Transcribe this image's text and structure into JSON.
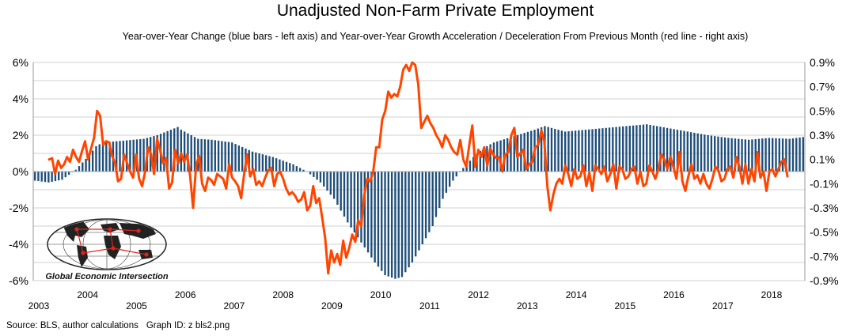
{
  "chart_data": {
    "type": "bar+line",
    "title": "Unadjusted Non-Farm Private Employment",
    "subtitle": "Year-over-Year Change (blue bars - left axis) and Year-over-Year Growth Acceleration / Deceleration From Previous Month (red line - right axis)",
    "left_axis": {
      "min": -6,
      "max": 6,
      "ticks": [
        "6%",
        "4%",
        "2%",
        "0%",
        "-2%",
        "-4%",
        "-6%"
      ]
    },
    "right_axis": {
      "min": -0.9,
      "max": 0.9,
      "ticks": [
        "0.9%",
        "0.7%",
        "0.5%",
        "0.3%",
        "0.1%",
        "-0.1%",
        "-0.3%",
        "-0.5%",
        "-0.7%",
        "-0.9%"
      ]
    },
    "x_labels_lower": [
      "2003",
      "2005",
      "2007",
      "2009",
      "2011",
      "2013",
      "2015",
      "2017"
    ],
    "x_labels_upper": [
      "2004",
      "2006",
      "2008",
      "2010",
      "2012",
      "2014",
      "2016",
      "2018"
    ],
    "bar_series": {
      "name": "Year-over-Year Change",
      "color": "#1f4e79",
      "unit": "%",
      "anchors": [
        [
          0,
          -0.5
        ],
        [
          4,
          -0.6
        ],
        [
          8,
          -0.45
        ],
        [
          12,
          0.1
        ],
        [
          14,
          0.5
        ],
        [
          16,
          0.9
        ],
        [
          18,
          1.4
        ],
        [
          20,
          1.6
        ],
        [
          26,
          1.7
        ],
        [
          32,
          1.8
        ],
        [
          36,
          2.0
        ],
        [
          40,
          2.3
        ],
        [
          42,
          2.45
        ],
        [
          43,
          2.3
        ],
        [
          48,
          1.8
        ],
        [
          52,
          1.75
        ],
        [
          58,
          1.6
        ],
        [
          64,
          1.1
        ],
        [
          70,
          0.8
        ],
        [
          76,
          0.4
        ],
        [
          80,
          0.0
        ],
        [
          84,
          -0.6
        ],
        [
          88,
          -1.5
        ],
        [
          92,
          -2.8
        ],
        [
          96,
          -3.9
        ],
        [
          100,
          -5.0
        ],
        [
          103,
          -5.7
        ],
        [
          106,
          -5.9
        ],
        [
          108,
          -5.8
        ],
        [
          111,
          -5.0
        ],
        [
          114,
          -4.0
        ],
        [
          117,
          -3.0
        ],
        [
          120,
          -1.5
        ],
        [
          123,
          -0.5
        ],
        [
          126,
          0.2
        ],
        [
          129,
          0.8
        ],
        [
          132,
          1.3
        ],
        [
          135,
          1.6
        ],
        [
          141,
          1.95
        ],
        [
          147,
          2.3
        ],
        [
          150,
          2.5
        ],
        [
          156,
          2.2
        ],
        [
          162,
          2.3
        ],
        [
          168,
          2.4
        ],
        [
          174,
          2.5
        ],
        [
          180,
          2.6
        ],
        [
          186,
          2.4
        ],
        [
          192,
          2.2
        ],
        [
          198,
          2.0
        ],
        [
          204,
          1.85
        ],
        [
          210,
          1.75
        ],
        [
          216,
          1.85
        ],
        [
          222,
          1.8
        ],
        [
          226,
          1.9
        ]
      ]
    },
    "line_series": {
      "name": "Year-over-Year Growth Acceleration / Deceleration From Previous Month",
      "color": "#ff4500",
      "unit": "%",
      "values": [
        0.1,
        0.11,
        -0.02,
        0.09,
        0.03,
        0.06,
        0.12,
        0.08,
        0.18,
        0.12,
        0.08,
        0.17,
        0.25,
        0.1,
        0.19,
        0.28,
        0.5,
        0.46,
        0.22,
        0.25,
        0.24,
        0.13,
        0.07,
        -0.08,
        -0.06,
        0.14,
        0.07,
        0.0,
        -0.05,
        0.14,
        -0.06,
        -0.12,
        0.0,
        0.2,
        0.14,
        -0.02,
        0.27,
        0.18,
        0.07,
        0.11,
        -0.14,
        -0.09,
        0.18,
        0.07,
        0.15,
        0.08,
        0.14,
        -0.04,
        -0.3,
        0.05,
        0.13,
        -0.1,
        -0.16,
        -0.05,
        -0.07,
        -0.11,
        -0.02,
        -0.04,
        -0.06,
        -0.14,
        0.06,
        -0.05,
        -0.08,
        -0.12,
        -0.22,
        -0.02,
        0.14,
        -0.04,
        0.02,
        -0.11,
        -0.08,
        -0.12,
        -0.05,
        0.01,
        0.03,
        -0.12,
        -0.02,
        0.0,
        -0.06,
        -0.14,
        -0.19,
        -0.17,
        -0.2,
        -0.25,
        -0.23,
        -0.17,
        -0.32,
        -0.28,
        -0.12,
        -0.26,
        -0.22,
        -0.38,
        -0.55,
        -0.84,
        -0.65,
        -0.75,
        -0.68,
        -0.77,
        -0.57,
        -0.71,
        -0.63,
        -0.52,
        -0.58,
        -0.4,
        -0.45,
        -0.2,
        -0.06,
        -0.08,
        0.0,
        0.2,
        0.2,
        0.43,
        0.5,
        0.66,
        0.61,
        0.64,
        0.62,
        0.7,
        0.84,
        0.88,
        0.83,
        0.94,
        0.88,
        0.72,
        0.36,
        0.41,
        0.46,
        0.4,
        0.36,
        0.3,
        0.26,
        0.2,
        0.3,
        0.26,
        0.2,
        0.16,
        0.14,
        0.26,
        0.1,
        0.04,
        0.22,
        0.38,
        0.04,
        0.18,
        0.12,
        0.2,
        0.05,
        0.19,
        0.14,
        0.11,
        0.12,
        0.0,
        0.14,
        0.16,
        0.3,
        0.36,
        0.12,
        0.15,
        0.18,
        0.02,
        0.06,
        0.08,
        0.2,
        0.22,
        0.34,
        0.25,
        -0.12,
        -0.32,
        -0.19,
        -0.1,
        -0.06,
        -0.1,
        0.05,
        -0.02,
        -0.12,
        0.02,
        -0.06,
        -0.04,
        0.05,
        -0.12,
        -0.01,
        -0.16,
        0.05,
        0.02,
        -0.02,
        0.04,
        -0.08,
        -0.02,
        0.06,
        -0.14,
        0.04,
        0.02,
        -0.06,
        -0.04,
        0.02,
        0.04,
        -0.1,
        0.0,
        -0.12,
        -0.1,
        0.05,
        0.0,
        -0.06,
        0.02,
        0.14,
        0.1,
        0.02,
        0.12,
        0.04,
        -0.06,
        0.16,
        -0.08,
        -0.16,
        -0.04,
        0.06,
        -0.06,
        -0.03,
        -0.1,
        -0.02,
        -0.1,
        -0.14,
        -0.06,
        0.04,
        0.01,
        -0.08,
        -0.06,
        0.02,
        0.04,
        -0.05,
        0.12,
        0.04,
        -0.1,
        0.06,
        -0.1,
        0.02,
        -0.08,
        0.16,
        -0.05,
        0.0,
        -0.16,
        0.0,
        0.02,
        -0.04,
        0.02,
        0.08,
        0.1,
        -0.04
      ]
    }
  },
  "footer": {
    "source": "Source: BLS, author calculations",
    "graph_id": "Graph ID: z bls2.png"
  },
  "logo": {
    "text": "Global Economic Intersection",
    "colors": {
      "land": "#222222",
      "lines": "#d9261c",
      "ocean": "#ffffff"
    }
  }
}
